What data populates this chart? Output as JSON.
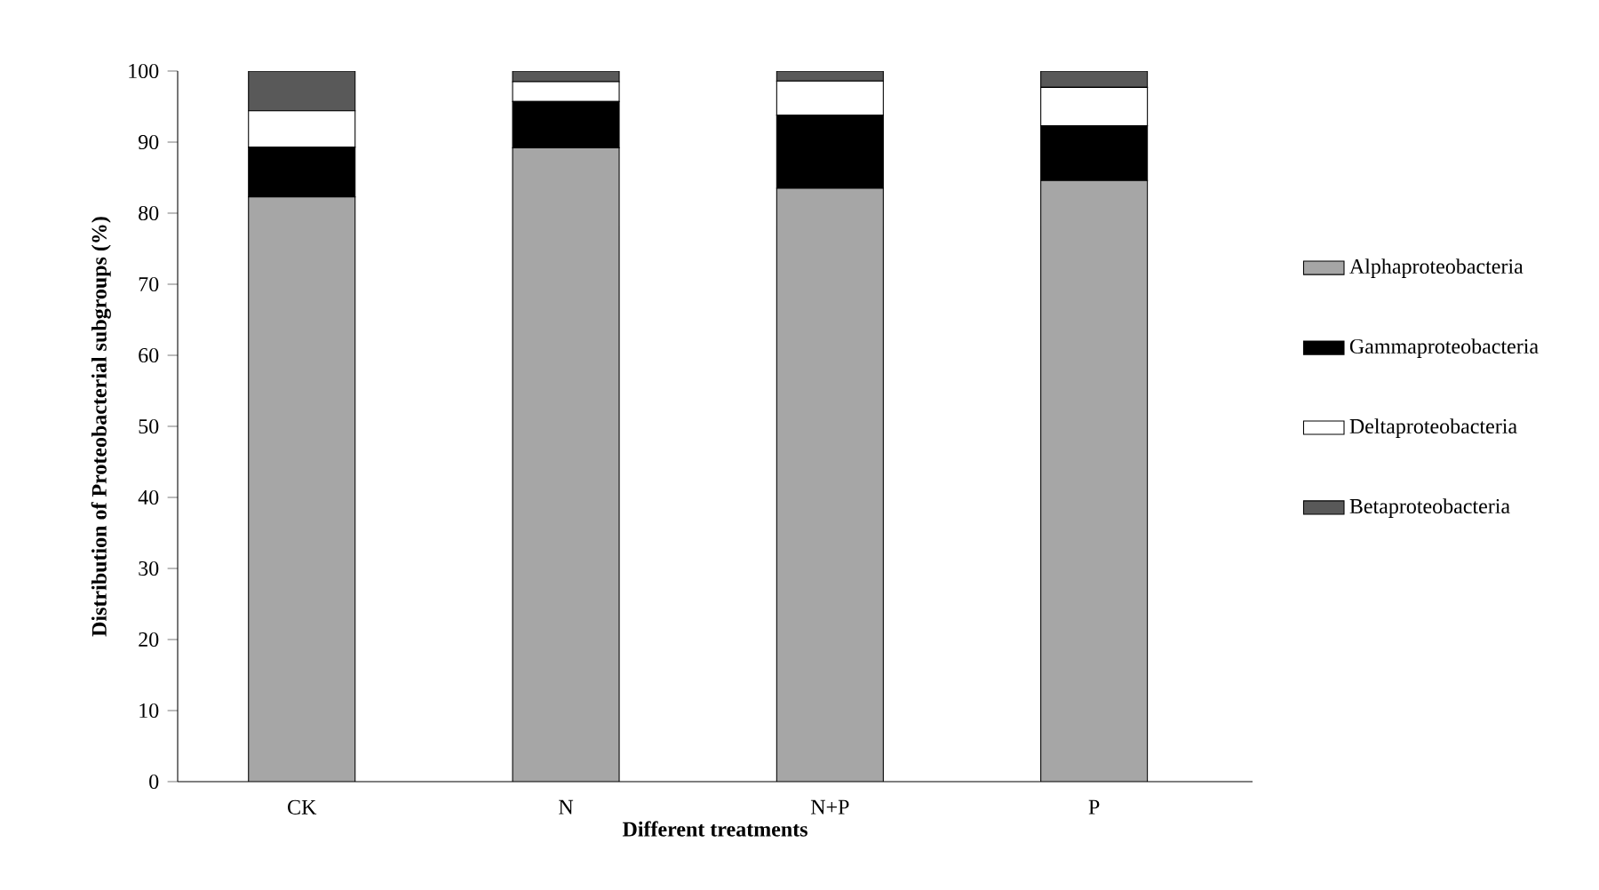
{
  "chart_data": {
    "type": "bar",
    "stacked": true,
    "xlabel": "Different treatments",
    "ylabel": "Distribution of Proteobacterial subgroups (%)",
    "categories": [
      "CK",
      "N",
      "N+P",
      "P"
    ],
    "series": [
      {
        "name": "Alphaproteobacteria",
        "color": "#a6a6a6",
        "values": [
          82.3,
          89.2,
          83.5,
          84.6
        ]
      },
      {
        "name": "Gammaproteobacteria",
        "color": "#000000",
        "values": [
          7.0,
          6.5,
          10.3,
          7.7
        ]
      },
      {
        "name": "Deltaproteobacteria",
        "color": "#ffffff",
        "values": [
          5.1,
          2.8,
          4.8,
          5.4
        ]
      },
      {
        "name": "Betaproteobacteria",
        "color": "#595959",
        "values": [
          5.6,
          1.5,
          1.4,
          2.3
        ]
      }
    ],
    "ylim": [
      0,
      100
    ],
    "yticks": [
      0,
      10,
      20,
      30,
      40,
      50,
      60,
      70,
      80,
      90,
      100
    ],
    "legend": "right"
  }
}
